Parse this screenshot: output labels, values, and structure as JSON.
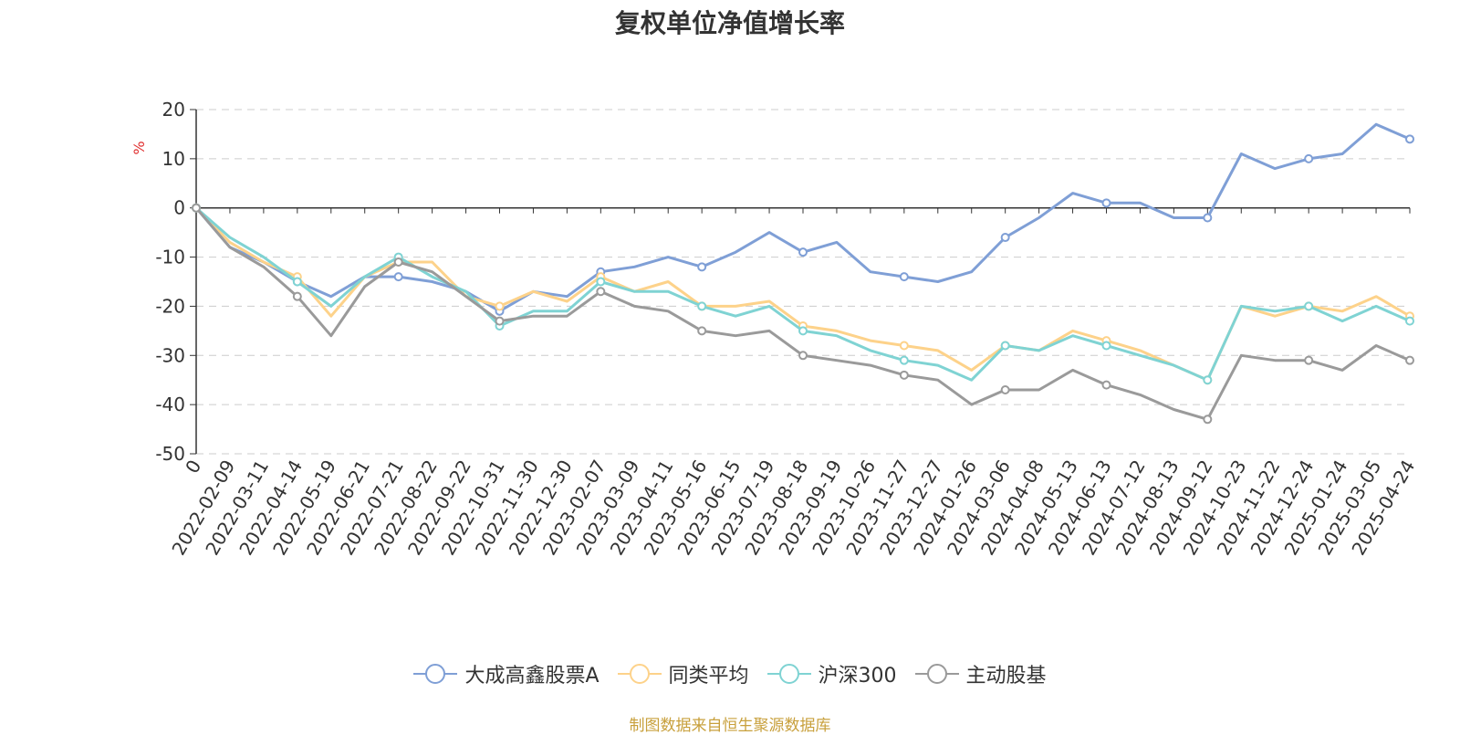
{
  "chart_data": {
    "type": "line",
    "title": "复权单位净值增长率",
    "ylabel": "%",
    "ylim": [
      -50,
      20
    ],
    "yticks": [
      20,
      10,
      0,
      -10,
      -20,
      -30,
      -40,
      -50
    ],
    "grid": true,
    "legend_position": "bottom",
    "x": [
      "0",
      "2022-02-09",
      "2022-03-11",
      "2022-04-14",
      "2022-05-19",
      "2022-06-21",
      "2022-07-21",
      "2022-08-22",
      "2022-09-22",
      "2022-10-31",
      "2022-11-30",
      "2022-12-30",
      "2023-02-07",
      "2023-03-09",
      "2023-04-11",
      "2023-05-16",
      "2023-06-15",
      "2023-07-19",
      "2023-08-18",
      "2023-09-19",
      "2023-10-26",
      "2023-11-27",
      "2023-12-27",
      "2024-01-26",
      "2024-03-06",
      "2024-04-08",
      "2024-05-13",
      "2024-06-13",
      "2024-07-12",
      "2024-08-13",
      "2024-09-12",
      "2024-10-23",
      "2024-11-22",
      "2024-12-24",
      "2025-01-24",
      "2025-03-05",
      "2025-04-24"
    ],
    "series": [
      {
        "name": "大成高鑫股票A",
        "color": "#7f9fd6",
        "values": [
          0,
          -8,
          -11,
          -15,
          -18,
          -14,
          -14,
          -15,
          -17,
          -21,
          -17,
          -18,
          -13,
          -12,
          -10,
          -12,
          -9,
          -5,
          -9,
          -7,
          -13,
          -14,
          -15,
          -13,
          -6,
          -2,
          3,
          1,
          1,
          -2,
          -2,
          11,
          8,
          10,
          11,
          17,
          14
        ]
      },
      {
        "name": "同类平均",
        "color": "#fdd28a",
        "values": [
          0,
          -7,
          -11,
          -14,
          -22,
          -14,
          -11,
          -11,
          -18,
          -20,
          -17,
          -19,
          -14,
          -17,
          -15,
          -20,
          -20,
          -19,
          -24,
          -25,
          -27,
          -28,
          -29,
          -33,
          -28,
          -29,
          -25,
          -27,
          -29,
          -32,
          -35,
          -20,
          -22,
          -20,
          -21,
          -18,
          -22
        ]
      },
      {
        "name": "沪深300",
        "color": "#7fd3d3",
        "values": [
          0,
          -6,
          -10,
          -15,
          -20,
          -14,
          -10,
          -14,
          -17,
          -24,
          -21,
          -21,
          -15,
          -17,
          -17,
          -20,
          -22,
          -20,
          -25,
          -26,
          -29,
          -31,
          -32,
          -35,
          -28,
          -29,
          -26,
          -28,
          -30,
          -32,
          -35,
          -20,
          -21,
          -20,
          -23,
          -20,
          -23
        ]
      },
      {
        "name": "主动股基",
        "color": "#9a9a9a",
        "values": [
          0,
          -8,
          -12,
          -18,
          -26,
          -16,
          -11,
          -13,
          -18,
          -23,
          -22,
          -22,
          -17,
          -20,
          -21,
          -25,
          -26,
          -25,
          -30,
          -31,
          -32,
          -34,
          -35,
          -40,
          -37,
          -37,
          -33,
          -36,
          -38,
          -41,
          -43,
          -30,
          -31,
          -31,
          -33,
          -28,
          -31
        ]
      }
    ]
  },
  "source": {
    "text": "制图数据来自恒生聚源数据库",
    "color": "#c8a03c"
  }
}
